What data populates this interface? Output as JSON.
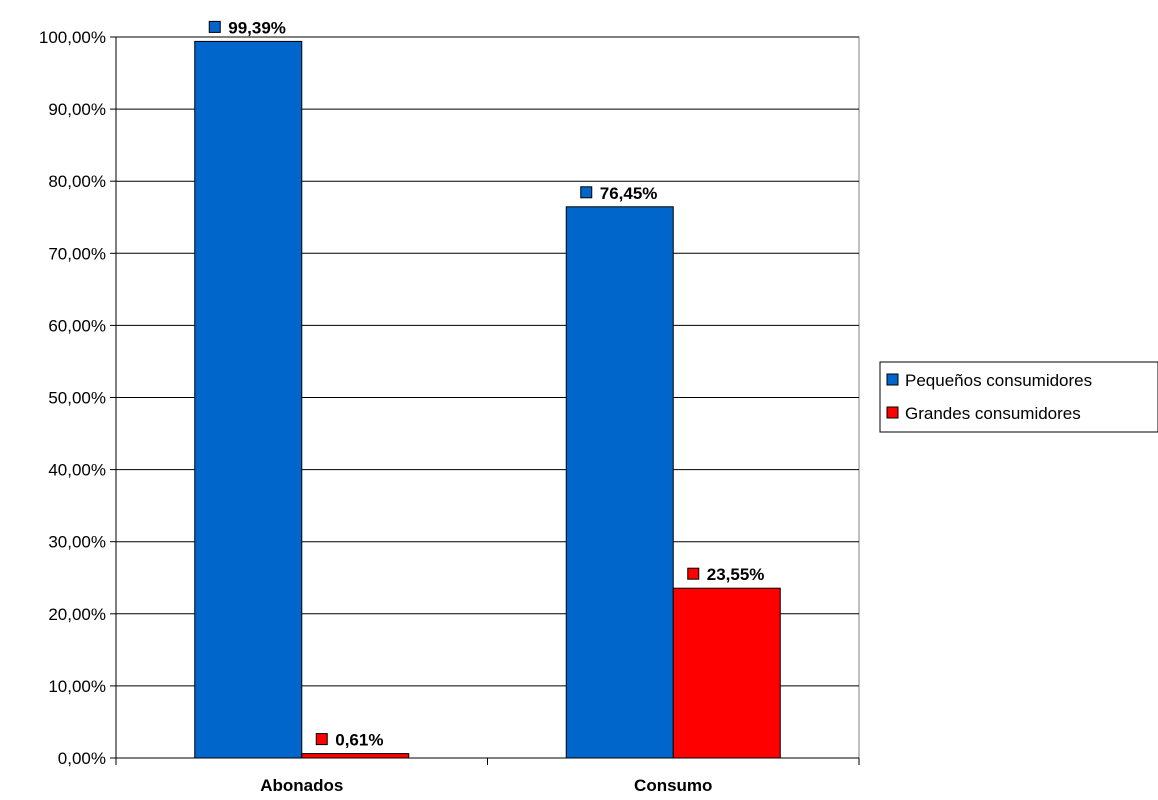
{
  "chart_data": {
    "type": "bar",
    "categories": [
      "Abonados",
      "Consumo"
    ],
    "series": [
      {
        "name": "Pequeños consumidores",
        "values": [
          99.39,
          76.45
        ],
        "labels": [
          "99,39%",
          "76,45%"
        ],
        "color": "#0066cc"
      },
      {
        "name": "Grandes consumidores",
        "values": [
          0.61,
          23.55
        ],
        "labels": [
          "0,61%",
          "23,55%"
        ],
        "color": "#ff0000"
      }
    ],
    "ylim": [
      0,
      100
    ],
    "yticks": [
      0,
      10,
      20,
      30,
      40,
      50,
      60,
      70,
      80,
      90,
      100
    ],
    "ytick_labels": [
      "0,00%",
      "10,00%",
      "20,00%",
      "30,00%",
      "40,00%",
      "50,00%",
      "60,00%",
      "70,00%",
      "80,00%",
      "90,00%",
      "100,00%"
    ],
    "grid": true,
    "legend": "right",
    "title": "",
    "xlabel": "",
    "ylabel": ""
  }
}
